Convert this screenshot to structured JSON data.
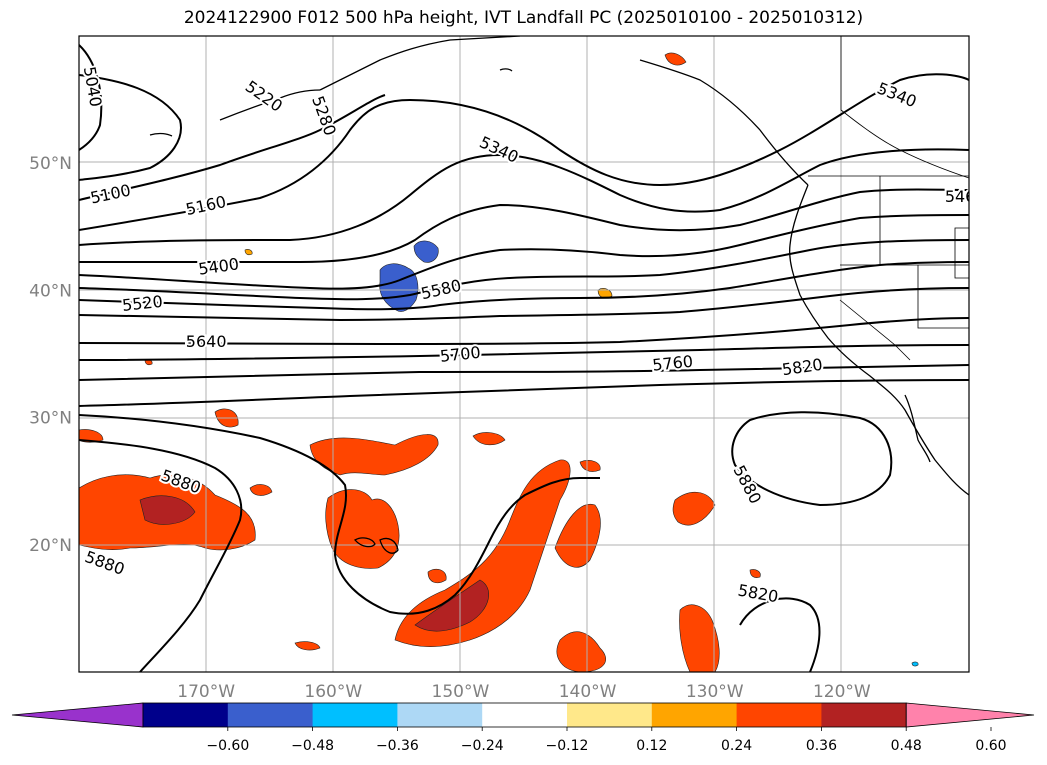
{
  "title": "2024122900 F012 500 hPa height, IVT Landfall PC (2025010100 - 2025010312)",
  "chart_data": {
    "type": "map",
    "lat_range": [
      10,
      60
    ],
    "lon_range": [
      -180,
      -110
    ],
    "lat_ticks": [
      {
        "value": 50,
        "label": "50°N"
      },
      {
        "value": 40,
        "label": "40°N"
      },
      {
        "value": 30,
        "label": "30°N"
      },
      {
        "value": 20,
        "label": "20°N"
      }
    ],
    "lon_ticks": [
      {
        "value": -170,
        "label": "170°W"
      },
      {
        "value": -160,
        "label": "160°W"
      },
      {
        "value": -150,
        "label": "150°W"
      },
      {
        "value": -140,
        "label": "140°W"
      },
      {
        "value": -130,
        "label": "130°W"
      },
      {
        "value": -120,
        "label": "120°W"
      }
    ],
    "gridlines": true,
    "contour_labels": [
      {
        "text": "5040",
        "lon": -179,
        "lat": 56.0,
        "rot": 80
      },
      {
        "text": "5220",
        "lon": -165.5,
        "lat": 55.2,
        "rot": 35
      },
      {
        "text": "5280",
        "lon": -160.8,
        "lat": 53.7,
        "rot": 70
      },
      {
        "text": "5340",
        "lon": -147.0,
        "lat": 51.0,
        "rot": 25
      },
      {
        "text": "5340",
        "lon": -115.7,
        "lat": 55.3,
        "rot": 22
      },
      {
        "text": "5100",
        "lon": -177.5,
        "lat": 47.5,
        "rot": -12
      },
      {
        "text": "5160",
        "lon": -170.0,
        "lat": 46.6,
        "rot": -12
      },
      {
        "text": "546",
        "lon": -110.7,
        "lat": 47.3,
        "rot": 0
      },
      {
        "text": "5400",
        "lon": -169.0,
        "lat": 41.8,
        "rot": -8
      },
      {
        "text": "5580",
        "lon": -151.5,
        "lat": 40.0,
        "rot": -13
      },
      {
        "text": "5520",
        "lon": -175.0,
        "lat": 38.9,
        "rot": -6
      },
      {
        "text": "5640",
        "lon": -170.0,
        "lat": 35.9,
        "rot": 0
      },
      {
        "text": "5700",
        "lon": -150.0,
        "lat": 34.9,
        "rot": -6
      },
      {
        "text": "5760",
        "lon": -133.3,
        "lat": 34.2,
        "rot": -6
      },
      {
        "text": "5820",
        "lon": -123.1,
        "lat": 33.9,
        "rot": -8
      },
      {
        "text": "5880",
        "lon": -178.0,
        "lat": 18.5,
        "rot": 20
      },
      {
        "text": "5880",
        "lon": -172.0,
        "lat": 24.9,
        "rot": 20
      },
      {
        "text": "5880",
        "lon": -127.5,
        "lat": 24.7,
        "rot": 62
      },
      {
        "text": "5820",
        "lon": -126.6,
        "lat": 16.1,
        "rot": 10
      }
    ],
    "colorbar": {
      "colors": [
        "#9932cc",
        "#00008b",
        "#3a5fcd",
        "#00bfff",
        "#add8f5",
        "#ffffff",
        "#ffe88a",
        "#ffa500",
        "#ff4500",
        "#b22222",
        "#ff82ab"
      ],
      "tick_values": [
        "−0.60",
        "−0.48",
        "−0.36",
        "−0.24",
        "−0.12",
        "0.12",
        "0.24",
        "0.36",
        "0.48",
        "0.60"
      ]
    }
  }
}
